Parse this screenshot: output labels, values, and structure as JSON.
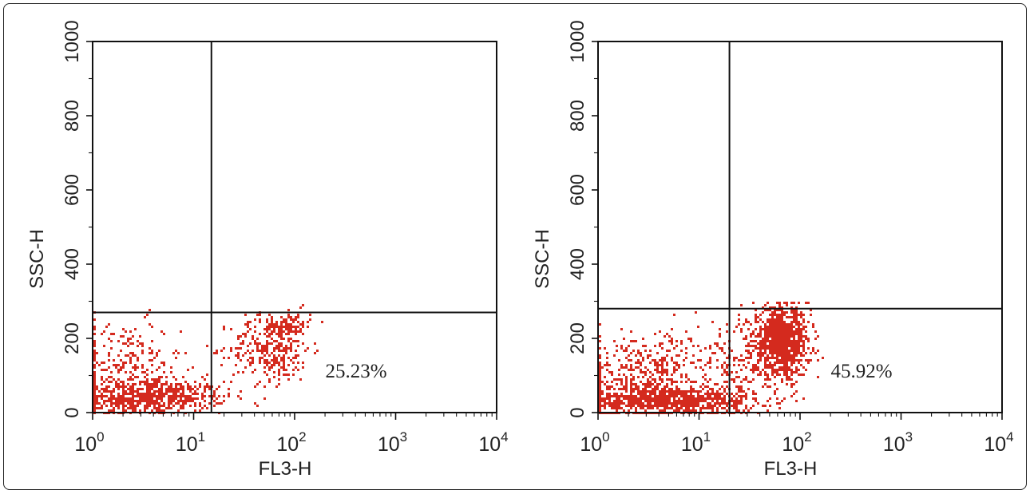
{
  "chart_data": [
    {
      "type": "scatter",
      "panel": "left",
      "xlabel": "FL3-H",
      "ylabel": "SSC-H",
      "x_scale": "log",
      "xlim": [
        1,
        10000
      ],
      "ylim": [
        0,
        1000
      ],
      "x_ticks": [
        {
          "base": "10",
          "exp": "0"
        },
        {
          "base": "10",
          "exp": "1"
        },
        {
          "base": "10",
          "exp": "2"
        },
        {
          "base": "10",
          "exp": "3"
        },
        {
          "base": "10",
          "exp": "4"
        }
      ],
      "y_ticks": [
        "0",
        "200",
        "400",
        "600",
        "800",
        "1000"
      ],
      "gate": {
        "x": 15,
        "y": 270
      },
      "annotation": "25.23%",
      "point_color": "#d42a1e",
      "clusters": [
        {
          "x_log_center": 0.55,
          "x_log_spread": 0.38,
          "y_center": 45,
          "y_spread": 22,
          "count": 620
        },
        {
          "x_log_center": 0.3,
          "x_log_spread": 0.28,
          "y_center": 120,
          "y_spread": 65,
          "count": 260
        },
        {
          "x_log_center": 1.75,
          "x_log_spread": 0.2,
          "y_center": 175,
          "y_spread": 45,
          "count": 320
        },
        {
          "x_log_center": 1.95,
          "x_log_spread": 0.1,
          "y_center": 238,
          "y_spread": 18,
          "count": 90
        }
      ]
    },
    {
      "type": "scatter",
      "panel": "right",
      "xlabel": "FL3-H",
      "ylabel": "SSC-H",
      "x_scale": "log",
      "xlim": [
        1,
        10000
      ],
      "ylim": [
        0,
        1000
      ],
      "x_ticks": [
        {
          "base": "10",
          "exp": "0"
        },
        {
          "base": "10",
          "exp": "1"
        },
        {
          "base": "10",
          "exp": "2"
        },
        {
          "base": "10",
          "exp": "3"
        },
        {
          "base": "10",
          "exp": "4"
        }
      ],
      "y_ticks": [
        "0",
        "200",
        "400",
        "600",
        "800",
        "1000"
      ],
      "gate": {
        "x": 20,
        "y": 280
      },
      "annotation": "45.92%",
      "point_color": "#d42a1e",
      "clusters": [
        {
          "x_log_center": 0.65,
          "x_log_spread": 0.45,
          "y_center": 35,
          "y_spread": 20,
          "count": 900
        },
        {
          "x_log_center": 0.5,
          "x_log_spread": 0.35,
          "y_center": 110,
          "y_spread": 55,
          "count": 420
        },
        {
          "x_log_center": 1.8,
          "x_log_spread": 0.14,
          "y_center": 195,
          "y_spread": 45,
          "count": 950
        },
        {
          "x_log_center": 1.45,
          "x_log_spread": 0.25,
          "y_center": 130,
          "y_spread": 60,
          "count": 160
        }
      ]
    }
  ]
}
